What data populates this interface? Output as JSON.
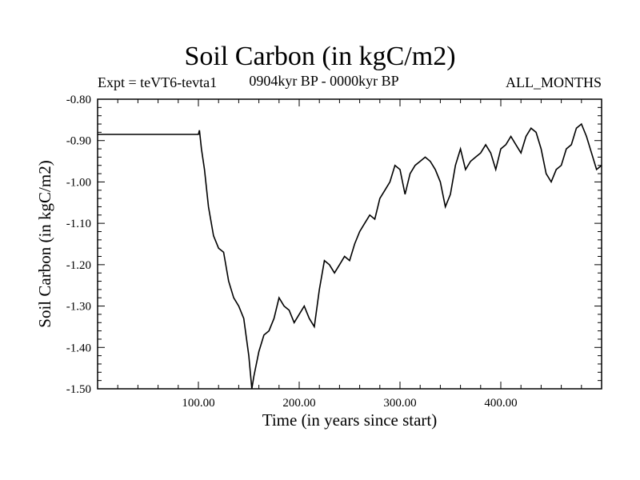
{
  "chart_data": {
    "type": "line",
    "title": "Soil Carbon (in kgC/m2)",
    "expt_label": "Expt = teVT6-tevta1",
    "period_label": "0904kyr BP - 0000kyr BP",
    "months_label": "ALL_MONTHS",
    "xlabel": "Time (in years since start)",
    "ylabel": "Soil Carbon (in kgC/m2)",
    "xlim": [
      0,
      500
    ],
    "ylim": [
      -1.5,
      -0.8
    ],
    "x_ticks": [
      100,
      200,
      300,
      400
    ],
    "x_tick_labels": [
      "100.00",
      "200.00",
      "300.00",
      "400.00"
    ],
    "y_ticks": [
      -0.8,
      -0.9,
      -1.0,
      -1.1,
      -1.2,
      -1.3,
      -1.4,
      -1.5
    ],
    "y_tick_labels": [
      "-0.80",
      "-0.90",
      "-1.00",
      "-1.10",
      "-1.20",
      "-1.30",
      "-1.40",
      "-1.50"
    ],
    "series": [
      {
        "name": "Soil Carbon",
        "color": "#000000",
        "x": [
          0,
          100,
          101,
          103,
          106,
          110,
          115,
          120,
          125,
          130,
          135,
          140,
          145,
          150,
          153,
          155,
          160,
          165,
          170,
          175,
          180,
          185,
          190,
          195,
          200,
          205,
          210,
          215,
          220,
          225,
          230,
          235,
          240,
          245,
          250,
          255,
          260,
          265,
          270,
          275,
          280,
          285,
          290,
          295,
          300,
          305,
          310,
          315,
          320,
          325,
          330,
          335,
          340,
          345,
          350,
          355,
          360,
          365,
          370,
          375,
          380,
          385,
          390,
          395,
          400,
          405,
          410,
          415,
          420,
          425,
          430,
          435,
          440,
          445,
          450,
          455,
          460,
          465,
          470,
          475,
          480,
          485,
          490,
          495,
          500
        ],
        "values": [
          -0.885,
          -0.885,
          -0.875,
          -0.92,
          -0.97,
          -1.06,
          -1.13,
          -1.16,
          -1.17,
          -1.24,
          -1.28,
          -1.3,
          -1.33,
          -1.42,
          -1.5,
          -1.47,
          -1.41,
          -1.37,
          -1.36,
          -1.33,
          -1.28,
          -1.3,
          -1.31,
          -1.34,
          -1.32,
          -1.3,
          -1.33,
          -1.35,
          -1.26,
          -1.19,
          -1.2,
          -1.22,
          -1.2,
          -1.18,
          -1.19,
          -1.15,
          -1.12,
          -1.1,
          -1.08,
          -1.09,
          -1.04,
          -1.02,
          -1.0,
          -0.96,
          -0.97,
          -1.03,
          -0.98,
          -0.96,
          -0.95,
          -0.94,
          -0.95,
          -0.97,
          -1.0,
          -1.06,
          -1.03,
          -0.96,
          -0.92,
          -0.97,
          -0.95,
          -0.94,
          -0.93,
          -0.91,
          -0.93,
          -0.97,
          -0.92,
          -0.91,
          -0.89,
          -0.91,
          -0.93,
          -0.89,
          -0.87,
          -0.88,
          -0.92,
          -0.98,
          -1.0,
          -0.97,
          -0.96,
          -0.92,
          -0.91,
          -0.87,
          -0.86,
          -0.89,
          -0.93,
          -0.97,
          -0.96
        ]
      }
    ]
  }
}
